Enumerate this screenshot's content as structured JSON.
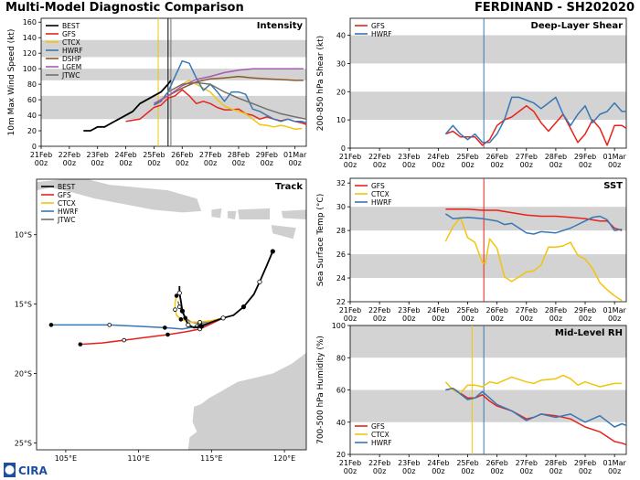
{
  "header": {
    "left_title": "Multi-Model Diagnostic Comparison",
    "right_title": "FERDINAND - SH202020"
  },
  "colors": {
    "BEST": "#000000",
    "GFS": "#e8221b",
    "CTCX": "#f2c40c",
    "HWRF": "#3777b5",
    "DSHP": "#8b5a2b",
    "LGEM": "#a65ab0",
    "JTWC": "#707070",
    "band": "#d3d3d3",
    "land": "#cfcfcf"
  },
  "logo": {
    "text": "CIRA"
  },
  "chart_data": [
    {
      "id": "intensity",
      "type": "line",
      "title": "Intensity",
      "ylabel": "10m Max Wind Speed (kt)",
      "xlabel": "",
      "categories": [
        "21Feb 00z",
        "22Feb 00z",
        "23Feb 00z",
        "24Feb 00z",
        "25Feb 00z",
        "26Feb 00z",
        "27Feb 00z",
        "28Feb 00z",
        "29Feb 00z",
        "01Mar 00z"
      ],
      "xlim": [
        0,
        9.4
      ],
      "ylim": [
        0,
        165
      ],
      "yticks": [
        0,
        20,
        40,
        60,
        80,
        100,
        120,
        140,
        160
      ],
      "bands": [
        [
          35,
          65
        ],
        [
          85,
          100
        ],
        [
          115,
          137
        ]
      ],
      "vlines": [
        {
          "x": 4.15,
          "color": "CTCX"
        },
        {
          "x": 4.5,
          "color": "BEST"
        },
        {
          "x": 4.6,
          "color": "JTWC"
        }
      ],
      "legend": [
        "BEST",
        "GFS",
        "CTCX",
        "HWRF",
        "DSHP",
        "LGEM",
        "JTWC"
      ],
      "legend_position": "upper-left",
      "series": [
        {
          "name": "BEST",
          "x": [
            1.5,
            1.75,
            2,
            2.25,
            2.5,
            2.75,
            3,
            3.25,
            3.5,
            3.75,
            4,
            4.25,
            4.5,
            4.6
          ],
          "y": [
            20,
            20,
            25,
            25,
            30,
            35,
            40,
            45,
            55,
            60,
            65,
            70,
            80,
            85
          ]
        },
        {
          "name": "GFS",
          "x": [
            3,
            3.5,
            4,
            4.25,
            4.5,
            4.75,
            5,
            5.25,
            5.5,
            5.75,
            6,
            6.25,
            6.5,
            6.75,
            7,
            7.25,
            7.5,
            7.75,
            8,
            8.25,
            8.5,
            8.75,
            9,
            9.25,
            9.4
          ],
          "y": [
            32,
            35,
            50,
            53,
            62,
            65,
            73,
            65,
            55,
            58,
            55,
            50,
            47,
            47,
            48,
            42,
            40,
            35,
            38,
            35,
            33,
            35,
            32,
            30,
            28
          ]
        },
        {
          "name": "CTCX",
          "x": [
            4,
            4.25,
            4.5,
            4.75,
            5,
            5.25,
            5.5,
            5.75,
            6,
            6.25,
            6.5,
            6.75,
            7,
            7.25,
            7.5,
            7.75,
            8,
            8.25,
            8.5,
            8.75,
            9,
            9.25
          ],
          "y": [
            53,
            60,
            70,
            75,
            80,
            85,
            80,
            75,
            70,
            60,
            52,
            48,
            45,
            42,
            35,
            28,
            27,
            25,
            27,
            25,
            22,
            23
          ]
        },
        {
          "name": "HWRF",
          "x": [
            4,
            4.25,
            4.5,
            4.75,
            5,
            5.25,
            5.5,
            5.75,
            6,
            6.25,
            6.5,
            6.75,
            7,
            7.25,
            7.5,
            7.75,
            8,
            8.25,
            8.5,
            8.75,
            9,
            9.25,
            9.4
          ],
          "y": [
            53,
            58,
            70,
            90,
            110,
            107,
            88,
            72,
            80,
            70,
            58,
            70,
            70,
            67,
            48,
            45,
            40,
            35,
            32,
            35,
            32,
            32,
            30
          ]
        },
        {
          "name": "DSHP",
          "x": [
            4,
            4.5,
            5,
            5.5,
            6,
            6.5,
            7,
            7.5,
            8,
            8.5,
            9,
            9.3
          ],
          "y": [
            55,
            65,
            75,
            83,
            87,
            88,
            90,
            88,
            87,
            86,
            85,
            85
          ]
        },
        {
          "name": "LGEM",
          "x": [
            4,
            4.5,
            5,
            5.5,
            6,
            6.5,
            7,
            7.5,
            8,
            8.5,
            9,
            9.3
          ],
          "y": [
            55,
            65,
            78,
            86,
            90,
            95,
            98,
            100,
            100,
            100,
            100,
            100
          ]
        },
        {
          "name": "JTWC",
          "x": [
            4.5,
            5,
            5.5,
            6,
            6.5,
            7,
            7.5,
            8,
            8.5,
            9,
            9.4
          ],
          "y": [
            70,
            80,
            82,
            80,
            70,
            62,
            55,
            48,
            42,
            38,
            35
          ]
        }
      ]
    },
    {
      "id": "track",
      "type": "scatter",
      "title": "Track",
      "xlabel": "",
      "ylabel": "",
      "xlim": [
        103,
        121.5
      ],
      "ylim": [
        -25.5,
        -6
      ],
      "xticks": [
        105,
        110,
        115,
        120
      ],
      "xtick_labels": [
        "105°E",
        "110°E",
        "115°E",
        "120°E"
      ],
      "yticks": [
        -10,
        -15,
        -20,
        -25
      ],
      "ytick_labels": [
        "10°S",
        "15°S",
        "20°S",
        "25°S"
      ],
      "legend": [
        "BEST",
        "GFS",
        "CTCX",
        "HWRF",
        "JTWC"
      ],
      "legend_position": "upper-left",
      "series": [
        {
          "name": "BEST",
          "x": [
            119.2,
            118.8,
            118.3,
            117.9,
            117.2,
            116.5,
            115.8,
            115,
            114.3,
            113.8,
            113.4,
            113.2,
            113,
            112.9,
            112.8,
            112.8
          ],
          "y": [
            -11.2,
            -12.2,
            -13.4,
            -14.3,
            -15.2,
            -15.8,
            -16,
            -16.3,
            -16.6,
            -16.7,
            -16.5,
            -16,
            -15.5,
            -14.8,
            -14.2,
            -13.7
          ]
        },
        {
          "name": "GFS",
          "x": [
            115.8,
            115,
            114.2,
            113.2,
            112,
            110.5,
            109,
            107.5,
            106
          ],
          "y": [
            -16,
            -16.4,
            -16.8,
            -17,
            -17.2,
            -17.4,
            -17.6,
            -17.8,
            -17.9
          ]
        },
        {
          "name": "CTCX",
          "x": [
            115.8,
            115,
            114.2,
            113.5,
            112.9,
            112.6,
            112.5,
            112.5,
            112.6
          ],
          "y": [
            -16,
            -16.2,
            -16.3,
            -16.3,
            -16.1,
            -15.8,
            -15.4,
            -14.9,
            -14.4
          ]
        },
        {
          "name": "HWRF",
          "x": [
            115.8,
            115,
            114,
            113,
            111.8,
            110,
            108,
            106,
            104
          ],
          "y": [
            -16,
            -16.3,
            -16.6,
            -16.8,
            -16.7,
            -16.6,
            -16.5,
            -16.5,
            -16.5
          ]
        },
        {
          "name": "JTWC",
          "x": [
            115.8,
            115,
            114.2,
            113.6,
            113.2,
            113,
            112.8,
            112.7
          ],
          "y": [
            -16,
            -16.2,
            -16.4,
            -16.3,
            -16,
            -15.6,
            -15.2,
            -14.8
          ]
        }
      ]
    },
    {
      "id": "shear",
      "type": "line",
      "title": "Deep-Layer Shear",
      "ylabel": "200-850 hPa Shear (kt)",
      "xlabel": "",
      "categories": [
        "21Feb 00z",
        "22Feb 00z",
        "23Feb 00z",
        "24Feb 00z",
        "25Feb 00z",
        "26Feb 00z",
        "27Feb 00z",
        "28Feb 00z",
        "29Feb 00z",
        "01Mar 00z"
      ],
      "xlim": [
        0,
        9.4
      ],
      "ylim": [
        0,
        46
      ],
      "yticks": [
        0,
        10,
        20,
        30,
        40
      ],
      "bands": [
        [
          10,
          20
        ],
        [
          30,
          40
        ]
      ],
      "vlines": [
        {
          "x": 4.55,
          "color": "HWRF"
        }
      ],
      "legend": [
        "GFS",
        "HWRF"
      ],
      "legend_position": "upper-left",
      "series": [
        {
          "name": "GFS",
          "x": [
            3.25,
            3.5,
            3.75,
            4,
            4.25,
            4.5,
            4.75,
            5,
            5.25,
            5.5,
            5.75,
            6,
            6.25,
            6.5,
            6.75,
            7,
            7.25,
            7.5,
            7.75,
            8,
            8.25,
            8.5,
            8.75,
            9,
            9.25,
            9.4
          ],
          "y": [
            5,
            6,
            4,
            4,
            4,
            1,
            3,
            8,
            10,
            11,
            13,
            15,
            13,
            9,
            6,
            9,
            12,
            7,
            2,
            5,
            10,
            7,
            1,
            8,
            8,
            7
          ]
        },
        {
          "name": "HWRF",
          "x": [
            3.25,
            3.5,
            3.75,
            4,
            4.25,
            4.5,
            4.75,
            5,
            5.25,
            5.5,
            5.75,
            6,
            6.25,
            6.5,
            6.75,
            7,
            7.25,
            7.5,
            7.75,
            8,
            8.25,
            8.5,
            8.75,
            9,
            9.25,
            9.4
          ],
          "y": [
            5,
            8,
            5,
            3,
            5,
            2,
            2,
            5,
            10,
            18,
            18,
            17,
            16,
            14,
            16,
            18,
            12,
            8,
            12,
            15,
            9,
            12,
            13,
            16,
            13,
            13
          ]
        }
      ]
    },
    {
      "id": "sst",
      "type": "line",
      "title": "SST",
      "ylabel": "Sea Surface Temp (°C)",
      "xlabel": "",
      "categories": [
        "21Feb 00z",
        "22Feb 00z",
        "23Feb 00z",
        "24Feb 00z",
        "25Feb 00z",
        "26Feb 00z",
        "27Feb 00z",
        "28Feb 00z",
        "29Feb 00z",
        "01Mar 00z"
      ],
      "xlim": [
        0,
        9.4
      ],
      "ylim": [
        22,
        32.4
      ],
      "yticks": [
        22,
        24,
        26,
        28,
        30,
        32
      ],
      "bands": [
        [
          24,
          26
        ],
        [
          28,
          30
        ]
      ],
      "vlines": [
        {
          "x": 4.55,
          "color": "GFS"
        }
      ],
      "legend": [
        "GFS",
        "CTCX",
        "HWRF"
      ],
      "legend_position": "upper-left",
      "series": [
        {
          "name": "GFS",
          "x": [
            3.25,
            3.5,
            4,
            4.5,
            5,
            5.5,
            6,
            6.5,
            7,
            7.5,
            8,
            8.5,
            8.75,
            9,
            9.25
          ],
          "y": [
            29.8,
            29.8,
            29.8,
            29.7,
            29.7,
            29.5,
            29.3,
            29.2,
            29.2,
            29.1,
            29,
            28.8,
            28.8,
            28.2,
            28
          ]
        },
        {
          "name": "CTCX",
          "x": [
            3.25,
            3.5,
            3.75,
            4,
            4.25,
            4.5,
            4.6,
            4.75,
            5,
            5.25,
            5.5,
            5.75,
            6,
            6.25,
            6.5,
            6.75,
            7,
            7.25,
            7.5,
            7.75,
            8,
            8.25,
            8.5,
            8.75,
            9,
            9.25
          ],
          "y": [
            27.1,
            28.3,
            29.1,
            27.4,
            27,
            25.3,
            25.2,
            27.3,
            26.5,
            24.1,
            23.7,
            24.1,
            24.5,
            24.6,
            25.1,
            26.6,
            26.6,
            26.7,
            27,
            25.9,
            25.6,
            24.8,
            23.6,
            23,
            22.5,
            22.1
          ]
        },
        {
          "name": "HWRF",
          "x": [
            3.25,
            3.5,
            4,
            4.5,
            5,
            5.25,
            5.5,
            6,
            6.25,
            6.5,
            7,
            7.5,
            8,
            8.25,
            8.5,
            8.75,
            9,
            9.25
          ],
          "y": [
            29.4,
            29,
            29.1,
            29,
            28.8,
            28.5,
            28.6,
            27.8,
            27.7,
            27.9,
            27.8,
            28.2,
            28.8,
            29.1,
            29.2,
            28.9,
            28,
            28.1
          ]
        }
      ]
    },
    {
      "id": "rh",
      "type": "line",
      "title": "Mid-Level RH",
      "ylabel": "700-500 hPa Humidity (%)",
      "xlabel": "",
      "categories": [
        "21Feb 00z",
        "22Feb 00z",
        "23Feb 00z",
        "24Feb 00z",
        "25Feb 00z",
        "26Feb 00z",
        "27Feb 00z",
        "28Feb 00z",
        "29Feb 00z",
        "01Mar 00z"
      ],
      "xlim": [
        0,
        9.4
      ],
      "ylim": [
        20,
        100
      ],
      "yticks": [
        20,
        40,
        60,
        80,
        100
      ],
      "bands": [
        [
          40,
          60
        ],
        [
          80,
          100
        ]
      ],
      "vlines": [
        {
          "x": 4.15,
          "color": "CTCX"
        },
        {
          "x": 4.55,
          "color": "HWRF"
        }
      ],
      "legend": [
        "GFS",
        "CTCX",
        "HWRF"
      ],
      "legend_position": "lower-left",
      "series": [
        {
          "name": "GFS",
          "x": [
            3.25,
            3.5,
            4,
            4.25,
            4.5,
            4.75,
            5,
            5.5,
            6,
            6.25,
            6.5,
            7,
            7.5,
            8,
            8.5,
            9,
            9.25,
            9.4
          ],
          "y": [
            60,
            61,
            55,
            55,
            57,
            53,
            50,
            47,
            42,
            43,
            45,
            44,
            42,
            37,
            34,
            28,
            27,
            26
          ]
        },
        {
          "name": "CTCX",
          "x": [
            3.25,
            3.5,
            3.75,
            4,
            4.25,
            4.5,
            4.75,
            5,
            5.5,
            6,
            6.25,
            6.5,
            7,
            7.25,
            7.5,
            7.75,
            8,
            8.5,
            9,
            9.25
          ],
          "y": [
            65,
            60,
            58,
            63,
            63,
            62,
            65,
            64,
            68,
            65,
            64,
            66,
            67,
            69,
            67,
            63,
            65,
            62,
            64,
            64
          ]
        },
        {
          "name": "HWRF",
          "x": [
            3.25,
            3.5,
            4,
            4.25,
            4.5,
            4.75,
            5,
            5.5,
            6,
            6.5,
            7,
            7.5,
            8,
            8.5,
            9,
            9.25,
            9.4
          ],
          "y": [
            60,
            61,
            54,
            55,
            59,
            55,
            51,
            47,
            41,
            45,
            43,
            45,
            40,
            44,
            37,
            39,
            38
          ]
        }
      ]
    }
  ]
}
